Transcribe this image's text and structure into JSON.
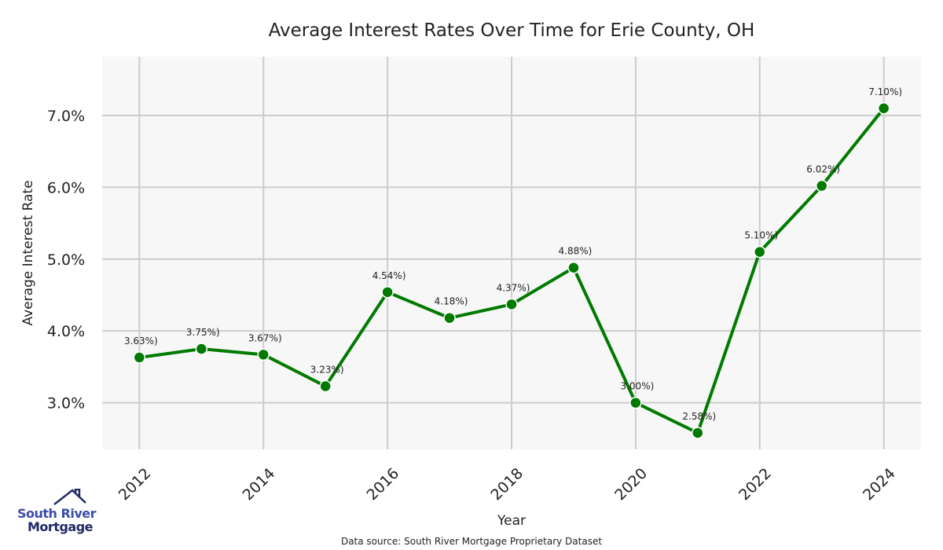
{
  "chart_data": {
    "type": "line",
    "title": "Average Interest Rates Over Time for Erie County, OH",
    "xlabel": "Year",
    "ylabel": "Average Interest Rate",
    "x": [
      2012,
      2013,
      2014,
      2015,
      2016,
      2017,
      2018,
      2019,
      2020,
      2021,
      2022,
      2023,
      2024
    ],
    "values": [
      3.63,
      3.75,
      3.67,
      3.23,
      4.54,
      4.18,
      4.37,
      4.88,
      3.0,
      2.58,
      5.1,
      6.02,
      7.1
    ],
    "data_labels": [
      "3.63%)",
      "3.75%)",
      "3.67%)",
      "3.23%)",
      "4.54%)",
      "4.18%)",
      "4.37%)",
      "4.88%)",
      "3.00%)",
      "2.58%)",
      "5.10%)",
      "6.02%)",
      "7.10%)"
    ],
    "xticks": [
      "2012",
      "2014",
      "2016",
      "2018",
      "2020",
      "2022",
      "2024"
    ],
    "yticks": [
      "3.0%",
      "4.0%",
      "5.0%",
      "6.0%",
      "7.0%"
    ],
    "ytick_values": [
      3,
      4,
      5,
      6,
      7
    ],
    "xlim": [
      2011.4,
      2024.6
    ],
    "ylim": [
      2.35,
      7.82
    ],
    "grid": true,
    "line_color": "#007a00",
    "source": "Data source: South River Mortgage Proprietary Dataset"
  },
  "logo": {
    "line1": "South River",
    "line2": "Mortgage"
  }
}
